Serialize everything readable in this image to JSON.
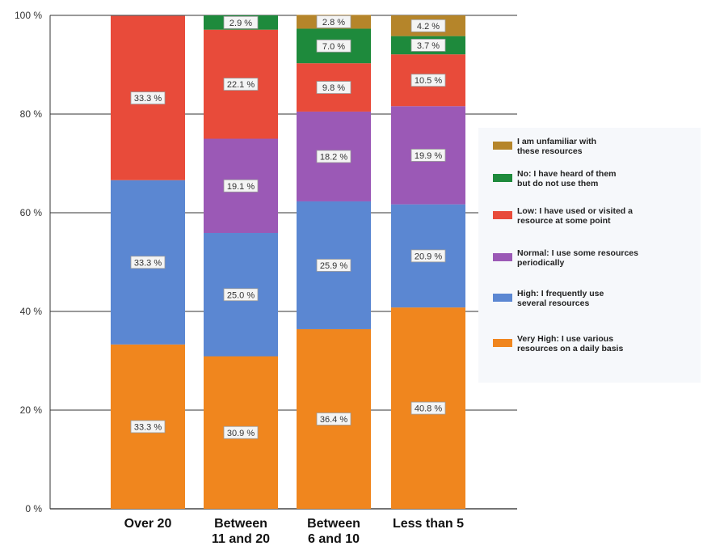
{
  "chart_data": {
    "type": "bar",
    "stacked": true,
    "categories": [
      [
        "Over 20"
      ],
      [
        "Between",
        "11 and 20"
      ],
      [
        "Between",
        "6 and 10"
      ],
      [
        "Less than 5"
      ]
    ],
    "ylim": [
      0,
      100
    ],
    "yticks": [
      0,
      20,
      40,
      60,
      80,
      100
    ],
    "ytick_suffix": " %",
    "grid": true,
    "legend_position": "right",
    "series": [
      {
        "name": "Very High: I use various resources on a daily basis",
        "legend_lines": [
          "Very High: I use various",
          "resources on a daily basis"
        ],
        "color": "#f0861e",
        "values": [
          33.3,
          30.9,
          36.4,
          40.8
        ]
      },
      {
        "name": "High: I  frequently use several resources",
        "legend_lines": [
          "High: I  frequently use",
          "several resources"
        ],
        "color": "#5b87d2",
        "values": [
          33.3,
          25.0,
          25.9,
          20.9
        ]
      },
      {
        "name": "Normal: I use some resources periodically",
        "legend_lines": [
          "Normal: I use some resources",
          "periodically"
        ],
        "color": "#9b59b6",
        "values": [
          0,
          19.1,
          18.2,
          19.9
        ]
      },
      {
        "name": "Low: I have used or visited a resource at some point",
        "legend_lines": [
          "Low: I have used or visited a",
          "resource at some point"
        ],
        "color": "#e84b3a",
        "values": [
          33.3,
          22.1,
          9.8,
          10.5
        ]
      },
      {
        "name": "No: I have heard of them but do not use them",
        "legend_lines": [
          "No: I have heard of them",
          "but do not use them"
        ],
        "color": "#1e8a3c",
        "values": [
          0,
          2.9,
          7.0,
          3.7
        ]
      },
      {
        "name": "I am unfamiliar with these resources",
        "legend_lines": [
          "I am unfamiliar with",
          "these resources"
        ],
        "color": "#b5852a",
        "values": [
          0,
          0,
          2.8,
          4.2
        ]
      }
    ]
  }
}
